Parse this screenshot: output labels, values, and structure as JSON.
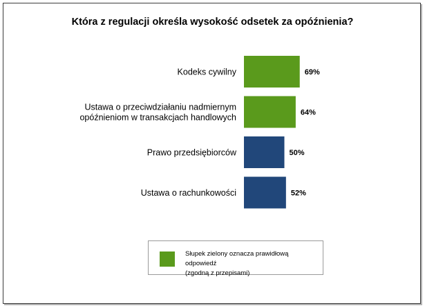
{
  "chart_data": {
    "type": "bar",
    "orientation": "horizontal",
    "title": "Która z regulacji określa wysokość odsetek za opóźnienia?",
    "categories": [
      "Kodeks cywilny",
      "Ustawa o przeciwdziałaniu nadmiernym\nopóźnieniom w transakcjach handlowych",
      "Prawo przedsiębiorców",
      "Ustawa o rachunkowości"
    ],
    "values": [
      69,
      64,
      50,
      52
    ],
    "value_labels": [
      "69%",
      "64%",
      "50%",
      "52%"
    ],
    "unit": "%",
    "bar_colors": [
      "#5a9a1c",
      "#5a9a1c",
      "#21477a",
      "#21477a"
    ],
    "xlim": [
      0,
      100
    ],
    "grid": false,
    "legend": {
      "position": "bottom-center",
      "color": "#5a9a1c",
      "text": "Słupek zielony oznacza prawidłową odpowiedź\n(zgodną z przepisami)"
    }
  }
}
